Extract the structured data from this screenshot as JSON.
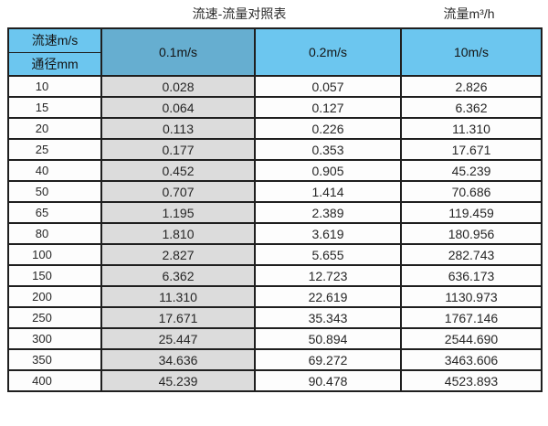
{
  "page": {
    "title": "流速-流量对照表",
    "flow_unit_label": "流量m³/h"
  },
  "colors": {
    "header_light_blue": "#6cc6ef",
    "header_dark_blue": "#66aed0",
    "highlight_column_gray": "#dcdcdc",
    "border_black": "#1f1f1f",
    "cell_white": "#fdfdfd"
  },
  "chart_data": {
    "type": "table",
    "title": "流速-流量对照表",
    "unit_label": "流量m³/h",
    "header": {
      "corner_top_label": "流速m/s",
      "corner_bottom_label": "通径mm",
      "velocity_columns": [
        "0.1m/s",
        "0.2m/s",
        "10m/s"
      ]
    },
    "rows": [
      [
        "10",
        "0.028",
        "0.057",
        "2.826"
      ],
      [
        "15",
        "0.064",
        "0.127",
        "6.362"
      ],
      [
        "20",
        "0.113",
        "0.226",
        "11.310"
      ],
      [
        "25",
        "0.177",
        "0.353",
        "17.671"
      ],
      [
        "40",
        "0.452",
        "0.905",
        "45.239"
      ],
      [
        "50",
        "0.707",
        "1.414",
        "70.686"
      ],
      [
        "65",
        "1.195",
        "2.389",
        "119.459"
      ],
      [
        "80",
        "1.810",
        "3.619",
        "180.956"
      ],
      [
        "100",
        "2.827",
        "5.655",
        "282.743"
      ],
      [
        "150",
        "6.362",
        "12.723",
        "636.173"
      ],
      [
        "200",
        "11.310",
        "22.619",
        "1130.973"
      ],
      [
        "250",
        "17.671",
        "35.343",
        "1767.146"
      ],
      [
        "300",
        "25.447",
        "50.894",
        "2544.690"
      ],
      [
        "350",
        "34.636",
        "69.272",
        "3463.606"
      ],
      [
        "400",
        "45.239",
        "90.478",
        "4523.893"
      ]
    ]
  }
}
